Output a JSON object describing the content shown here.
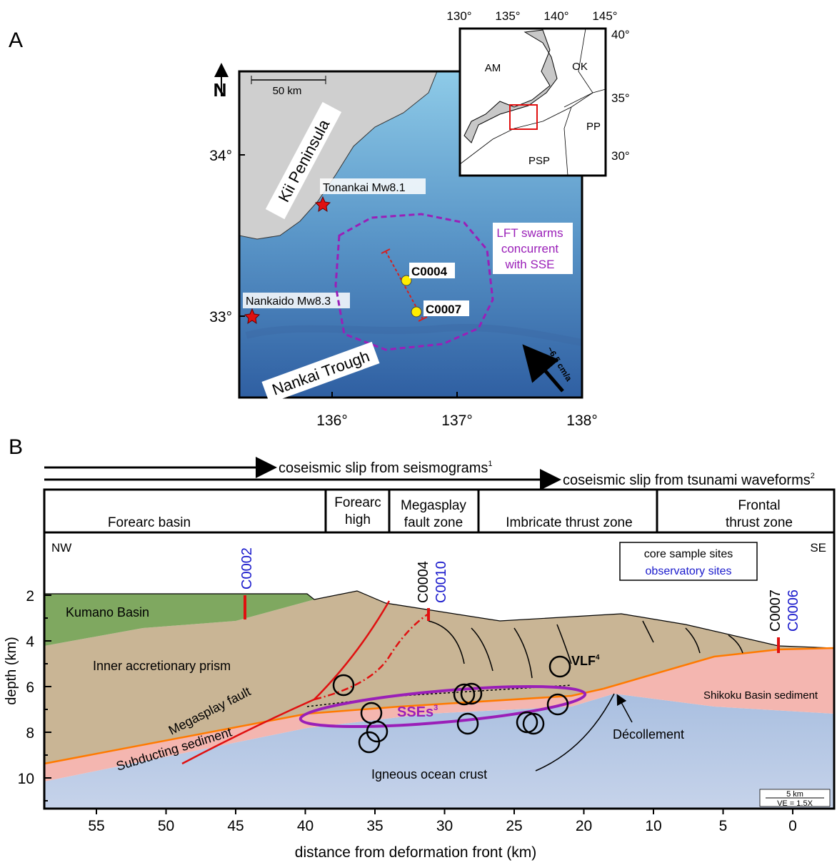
{
  "panel_a": {
    "label": "A",
    "north": "N",
    "scale_bar": "50 km",
    "lat_ticks": [
      "34°",
      "33°"
    ],
    "lon_ticks": [
      "136°",
      "137°",
      "138°"
    ],
    "peninsula": "Kii Peninsula",
    "earthquakes": [
      "Tonankai Mw8.1",
      "Nankaido Mw8.3"
    ],
    "sites": [
      "C0004",
      "C0007"
    ],
    "lft_label": [
      "LFT swarms",
      "concurrent",
      "with SSE"
    ],
    "trough": "Nankai Trough",
    "plate_rate": "~6.5 cm/a",
    "inset": {
      "lon_ticks": [
        "130°",
        "135°",
        "140°",
        "145°"
      ],
      "lat_ticks": [
        "40°",
        "35°",
        "30°"
      ],
      "plates": [
        "AM",
        "OK",
        "PP",
        "PSP"
      ]
    }
  },
  "panel_b": {
    "label": "B",
    "slip_arrows": [
      {
        "text": "coseismic slip from seismograms",
        "note": "1"
      },
      {
        "text": "coseismic slip from tsunami waveforms",
        "note": "2"
      }
    ],
    "zones": [
      [
        "Forearc basin"
      ],
      [
        "Forearc",
        "high"
      ],
      [
        "Megasplay",
        "fault zone"
      ],
      [
        "Imbricate thrust zone"
      ],
      [
        "Frontal",
        "thrust zone"
      ]
    ],
    "directions": [
      "NW",
      "SE"
    ],
    "legend": [
      "core sample sites",
      "observatory sites"
    ],
    "sites": {
      "core": [
        "C0004",
        "C0007"
      ],
      "observatory": [
        "C0002",
        "C0010",
        "C0006"
      ]
    },
    "units": [
      "Kumano Basin",
      "Inner accretionary prism",
      "Megasplay fault",
      "Subducting sediment",
      "Igneous ocean crust",
      "Shikoku Basin sediment",
      "Décollement"
    ],
    "sse": {
      "text": "SSEs",
      "note": "3"
    },
    "vlf": {
      "text": "VLF",
      "note": "4"
    },
    "scale": [
      "5 km",
      "VE = 1.5X"
    ],
    "y_label": "depth (km)",
    "y_ticks": [
      2,
      4,
      6,
      8,
      10
    ],
    "x_label": "distance from deformation front (km)",
    "x_ticks": [
      55,
      50,
      45,
      40,
      35,
      30,
      25,
      20,
      10,
      5,
      0
    ]
  }
}
